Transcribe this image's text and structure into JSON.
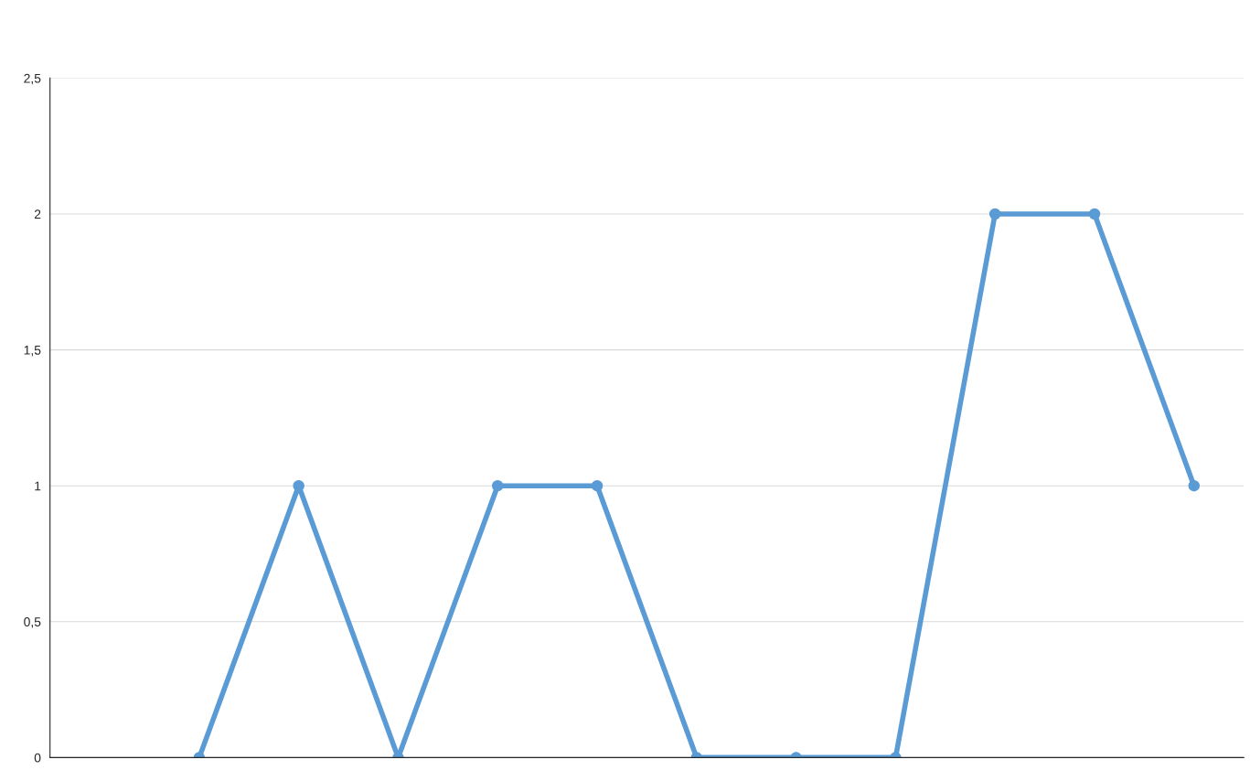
{
  "chart_data": {
    "type": "line",
    "categories": [
      null,
      null,
      null,
      null,
      null,
      null,
      null,
      null,
      null,
      null,
      null,
      null
    ],
    "series": [
      {
        "color": "#5b9bd5",
        "values": [
          null,
          0,
          1,
          0,
          1,
          1,
          0,
          0,
          0,
          2,
          2,
          1
        ]
      }
    ],
    "ylim": [
      0,
      2.5
    ],
    "yticks": [
      0,
      {
        "value": 0.5,
        "label": "0,5"
      },
      1,
      {
        "value": 1.5,
        "label": "1,5"
      },
      2,
      {
        "value": 2.5,
        "label": "2,5"
      }
    ],
    "grid": "y",
    "marker": "circle",
    "line_style": "solid"
  }
}
